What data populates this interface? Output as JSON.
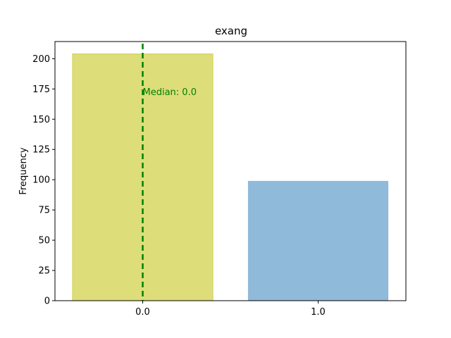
{
  "chart_data": {
    "type": "bar",
    "title": "exang",
    "xlabel": "",
    "ylabel": "Frequency",
    "categories": [
      "0.0",
      "1.0"
    ],
    "values": [
      204,
      99
    ],
    "bar_colors": [
      "#dddd7a",
      "#8fbad9"
    ],
    "ylim": [
      0,
      214.2
    ],
    "yticks": [
      0,
      25,
      50,
      75,
      100,
      125,
      150,
      175,
      200
    ],
    "median": {
      "value": "0.0",
      "label": "Median: 0.0",
      "color": "#008000"
    },
    "grid": false,
    "legend": "none"
  }
}
